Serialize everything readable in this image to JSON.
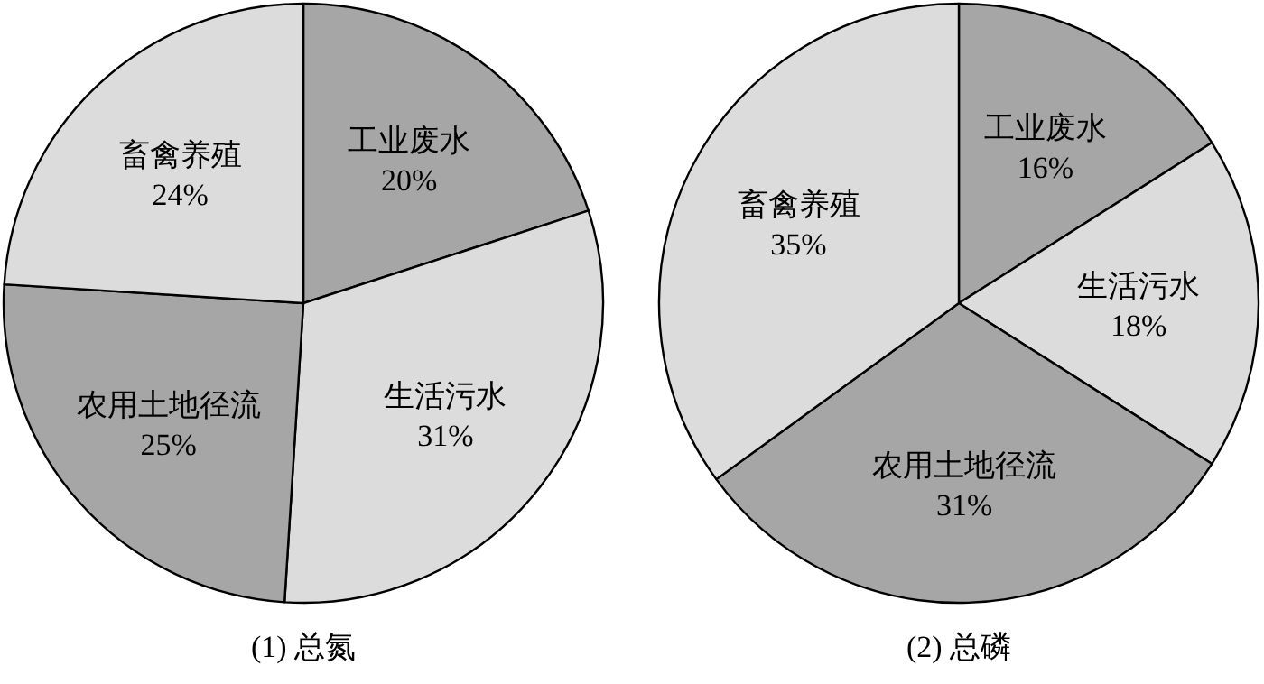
{
  "chart_data": [
    {
      "type": "pie",
      "title": "(1) 总氮",
      "categories": [
        "工业废水",
        "生活污水",
        "农用土地径流",
        "畜禽养殖"
      ],
      "values": [
        20,
        31,
        25,
        24
      ],
      "value_labels": [
        "20%",
        "31%",
        "25%",
        "24%"
      ],
      "colors": [
        "#a6a6a6",
        "#dcdcdc",
        "#a6a6a6",
        "#dcdcdc"
      ]
    },
    {
      "type": "pie",
      "title": "(2) 总磷",
      "categories": [
        "工业废水",
        "生活污水",
        "农用土地径流",
        "畜禽养殖"
      ],
      "values": [
        16,
        18,
        31,
        35
      ],
      "value_labels": [
        "16%",
        "18%",
        "31%",
        "35%"
      ],
      "colors": [
        "#a6a6a6",
        "#dcdcdc",
        "#a6a6a6",
        "#dcdcdc"
      ]
    }
  ]
}
